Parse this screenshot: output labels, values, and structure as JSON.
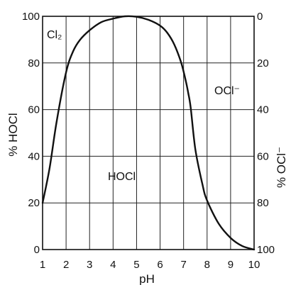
{
  "chart_data": {
    "type": "line",
    "xlabel": "pH",
    "ylabel_left": "% HOCl",
    "ylabel_right": "% OCl⁻",
    "xlim": [
      1,
      10
    ],
    "ylim": [
      0,
      100
    ],
    "x_ticks": [
      1,
      2,
      3,
      4,
      5,
      6,
      7,
      8,
      9,
      10
    ],
    "y_ticks_left": [
      0,
      20,
      40,
      60,
      80,
      100
    ],
    "y_ticks_right": [
      100,
      80,
      60,
      40,
      20,
      0
    ],
    "grid": true,
    "annotations": [
      {
        "text": "Cl₂"
      },
      {
        "text": "HOCl"
      },
      {
        "text": "OCl⁻"
      }
    ],
    "series": [
      {
        "x": [
          1.0,
          1.3,
          1.6,
          2.0,
          2.3,
          2.6,
          3.0,
          3.5,
          4.0,
          4.5,
          5.0,
          5.5,
          6.0,
          6.3,
          6.6,
          6.9,
          7.1,
          7.2,
          7.3,
          7.5,
          7.8,
          8.0,
          8.5,
          9.0,
          9.5,
          10.0
        ],
        "y": [
          20.0,
          35.0,
          55.0,
          76.0,
          85.0,
          90.0,
          94.0,
          97.5,
          99.0,
          100.0,
          99.8,
          98.5,
          96.0,
          93.0,
          88.0,
          80.0,
          72.0,
          67.0,
          61.0,
          43.0,
          28.0,
          21.0,
          11.0,
          5.0,
          1.5,
          0.0
        ]
      }
    ]
  }
}
